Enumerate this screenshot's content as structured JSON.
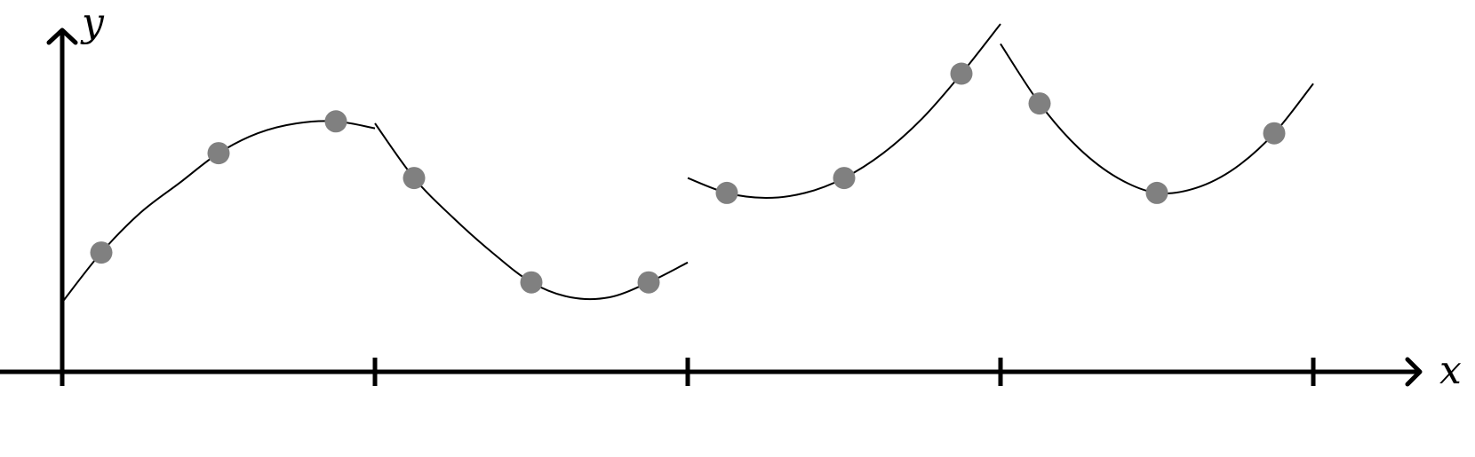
{
  "axes": {
    "x_label": "x",
    "y_label": "y"
  },
  "colors": {
    "axis": "#000000",
    "curve": "#000000",
    "point": "#808080"
  },
  "chart_data": {
    "type": "line",
    "xlim": [
      0,
      4.4
    ],
    "ylim": [
      0,
      3.5
    ],
    "x_ticks": [
      0,
      1,
      2,
      3,
      4
    ],
    "segments": [
      {
        "interval": [
          0,
          1
        ],
        "curve": [
          [
            0,
            0.7
          ],
          [
            0.125,
            1.2
          ],
          [
            0.25,
            1.6
          ],
          [
            0.375,
            1.9
          ],
          [
            0.5,
            2.2
          ],
          [
            0.625,
            2.4
          ],
          [
            0.75,
            2.5
          ],
          [
            0.875,
            2.52
          ],
          [
            1,
            2.45
          ]
        ],
        "points": [
          [
            0.125,
            1.2
          ],
          [
            0.5,
            2.2
          ],
          [
            0.875,
            2.52
          ]
        ]
      },
      {
        "interval": [
          1,
          2
        ],
        "curve": [
          [
            1,
            2.5
          ],
          [
            1.125,
            1.95
          ],
          [
            1.25,
            1.55
          ],
          [
            1.375,
            1.2
          ],
          [
            1.5,
            0.9
          ],
          [
            1.625,
            0.75
          ],
          [
            1.75,
            0.75
          ],
          [
            1.875,
            0.9
          ],
          [
            2,
            1.1
          ]
        ],
        "points": [
          [
            1.125,
            1.95
          ],
          [
            1.5,
            0.9
          ],
          [
            1.875,
            0.9
          ]
        ]
      },
      {
        "interval": [
          2,
          3
        ],
        "curve": [
          [
            2,
            1.95
          ],
          [
            2.125,
            1.8
          ],
          [
            2.25,
            1.75
          ],
          [
            2.375,
            1.8
          ],
          [
            2.5,
            1.95
          ],
          [
            2.625,
            2.2
          ],
          [
            2.75,
            2.55
          ],
          [
            2.875,
            3.0
          ],
          [
            3,
            3.5
          ]
        ],
        "points": [
          [
            2.125,
            1.8
          ],
          [
            2.5,
            1.95
          ],
          [
            2.875,
            3.0
          ]
        ]
      },
      {
        "interval": [
          3,
          4
        ],
        "curve": [
          [
            3,
            3.3
          ],
          [
            3.125,
            2.7
          ],
          [
            3.25,
            2.25
          ],
          [
            3.375,
            1.95
          ],
          [
            3.5,
            1.8
          ],
          [
            3.625,
            1.85
          ],
          [
            3.75,
            2.05
          ],
          [
            3.875,
            2.4
          ],
          [
            4,
            2.9
          ]
        ],
        "points": [
          [
            3.125,
            2.7
          ],
          [
            3.5,
            1.8
          ],
          [
            3.875,
            2.4
          ]
        ]
      }
    ]
  }
}
